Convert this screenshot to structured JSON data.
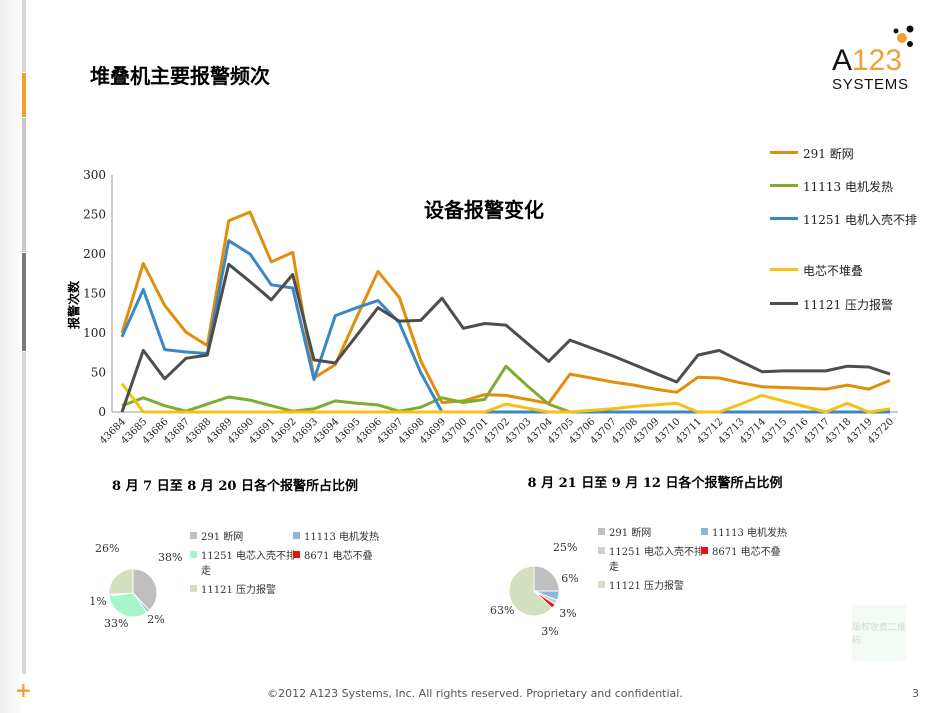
{
  "slide": {
    "title": "堆叠机主要报警频次",
    "footer": "©2012 A123 Systems, Inc. All rights reserved. Proprietary and confidential.",
    "page_number": "3",
    "logo_text": "A123 SYSTEMS",
    "watermark": "版权收费二维码",
    "accent_color": "#f0a030"
  },
  "chart_data": [
    {
      "type": "line",
      "title": "设备报警变化",
      "ylabel": "报警次数",
      "xlabel": "",
      "ylim": [
        0,
        300
      ],
      "yticks": [
        0,
        50,
        100,
        150,
        200,
        250,
        300
      ],
      "grid": false,
      "legend_position": "right",
      "categories": [
        "43684",
        "43685",
        "43686",
        "43687",
        "43688",
        "43689",
        "43690",
        "43691",
        "43692",
        "43693",
        "43694",
        "43695",
        "43696",
        "43697",
        "43698",
        "43699",
        "43700",
        "43701",
        "43702",
        "43703",
        "43704",
        "43705",
        "43706",
        "43707",
        "43708",
        "43709",
        "43710",
        "43711",
        "43712",
        "43713",
        "43714",
        "43715",
        "43716",
        "43717",
        "43718",
        "43719",
        "43720"
      ],
      "series": [
        {
          "name": "291 断网",
          "color": "#e08e0b",
          "values": [
            100,
            188,
            135,
            101,
            84,
            242,
            253,
            190,
            202,
            43,
            60,
            120,
            178,
            145,
            65,
            12,
            14,
            22,
            21,
            16,
            11,
            48,
            43,
            38,
            34,
            29,
            25,
            44,
            43,
            37,
            32,
            31,
            30,
            29,
            34,
            29,
            40
          ]
        },
        {
          "name": "11113 电机发热",
          "color": "#7fab2f",
          "values": [
            8,
            18,
            8,
            1,
            10,
            19,
            15,
            8,
            1,
            4,
            14,
            11,
            9,
            1,
            6,
            18,
            12,
            16,
            58,
            33,
            10,
            0,
            0,
            0,
            0,
            0,
            0,
            0,
            0,
            0,
            0,
            0,
            0,
            0,
            0,
            0,
            0
          ]
        },
        {
          "name": "11251 电机入壳不排",
          "color": "#3a87c8",
          "values": [
            95,
            155,
            79,
            76,
            74,
            217,
            200,
            161,
            157,
            41,
            122,
            132,
            141,
            113,
            50,
            0,
            0,
            0,
            0,
            0,
            0,
            0,
            0,
            0,
            0,
            0,
            0,
            0,
            0,
            0,
            0,
            0,
            0,
            0,
            0,
            0,
            0
          ]
        },
        {
          "name": "电芯不堆叠",
          "color": "#f5c116",
          "values": [
            36,
            0,
            0,
            0,
            0,
            0,
            0,
            0,
            0,
            0,
            0,
            0,
            0,
            0,
            0,
            0,
            0,
            0,
            10,
            5,
            0,
            0,
            2,
            4,
            7,
            9,
            11,
            0,
            0,
            10,
            21,
            14,
            7,
            0,
            11,
            0,
            4
          ]
        },
        {
          "name": "11121 压力报警",
          "color": "#4d4d4d",
          "values": [
            0,
            78,
            42,
            68,
            72,
            187,
            165,
            142,
            174,
            66,
            62,
            97,
            132,
            115,
            116,
            144,
            106,
            112,
            110,
            87,
            64,
            91,
            81,
            71,
            60,
            49,
            38,
            72,
            78,
            64,
            51,
            52,
            52,
            52,
            58,
            57,
            48
          ]
        }
      ]
    },
    {
      "type": "pie",
      "title": "8 月 7 日至 8 月 20 日各个报警所占比例",
      "legend_position": "right",
      "slices": [
        {
          "label": "291 断网",
          "value": 38,
          "color": "#bfbfbf",
          "pct": "38%"
        },
        {
          "label": "11113 电机发热",
          "value": 2,
          "color": "#8db4e2",
          "pct": "2%"
        },
        {
          "label": "11251 电芯入壳不排走",
          "value": 33,
          "color": "#a6f5cc",
          "pct": "33%"
        },
        {
          "label": "8671 电芯不叠",
          "value": 1,
          "color": "#ee1111",
          "pct": "1%"
        },
        {
          "label": "11121 压力报警",
          "value": 26,
          "color": "#d3dfbf",
          "pct": "26%"
        }
      ]
    },
    {
      "type": "pie",
      "title": "8 月 21 日至 9 月 12 日各个报警所占比例",
      "legend_position": "right",
      "slices": [
        {
          "label": "291 断网",
          "value": 25,
          "color": "#bfbfbf",
          "pct": "25%"
        },
        {
          "label": "11113 电机发热",
          "value": 6,
          "color": "#8db4e2",
          "pct": "6%"
        },
        {
          "label": "11251 电芯入壳不排走",
          "value": 3,
          "color": "#d0d0d0",
          "pct": "3%"
        },
        {
          "label": "8671 电芯不叠",
          "value": 3,
          "color": "#ee1111",
          "pct": "3%"
        },
        {
          "label": "11121 压力报警",
          "value": 63,
          "color": "#d3dfbf",
          "pct": "63%"
        }
      ]
    }
  ]
}
